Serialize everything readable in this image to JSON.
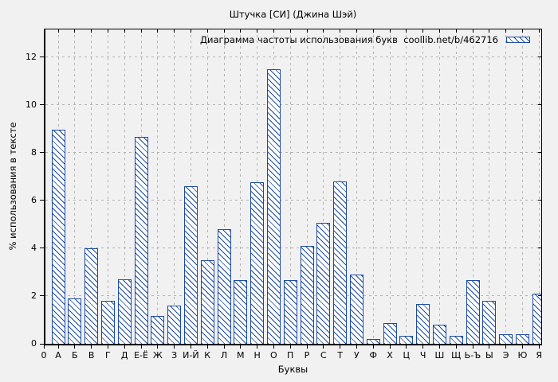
{
  "window": {
    "background_color": "#f1f1f1"
  },
  "chart_data": {
    "type": "bar",
    "title": "Штучка [СИ] (Джина Шэй)",
    "legend_label": "Диаграмма частоты использования букв  coollib.net/b/462716",
    "xlabel": "Буквы",
    "ylabel": "% использования в тексте",
    "origin_label": "0",
    "categories": [
      "А",
      "Б",
      "В",
      "Г",
      "Д",
      "Е-Ё",
      "Ж",
      "З",
      "И-Й",
      "К",
      "Л",
      "М",
      "Н",
      "О",
      "П",
      "Р",
      "С",
      "Т",
      "У",
      "Ф",
      "Х",
      "Ц",
      "Ч",
      "Ш",
      "Щ",
      "Ь-Ъ",
      "Ы",
      "Э",
      "Ю",
      "Я"
    ],
    "values": [
      8.95,
      1.9,
      4.0,
      1.8,
      2.7,
      8.65,
      1.15,
      1.6,
      6.6,
      3.5,
      4.8,
      2.65,
      6.75,
      11.5,
      2.65,
      4.1,
      5.05,
      6.8,
      2.9,
      0.2,
      0.85,
      0.35,
      1.65,
      0.8,
      0.35,
      2.65,
      1.8,
      0.4,
      0.4,
      2.1
    ],
    "yticks": [
      0,
      2,
      4,
      6,
      8,
      10,
      12
    ],
    "ylim": [
      0,
      13.15
    ],
    "grid": true,
    "legend_position": "top-right",
    "colors": {
      "bar_outline": "#1b4aa2",
      "bar_fill": "#ffffff",
      "grid": "#b3b3b3",
      "axis": "#000000",
      "text": "#000000"
    }
  }
}
